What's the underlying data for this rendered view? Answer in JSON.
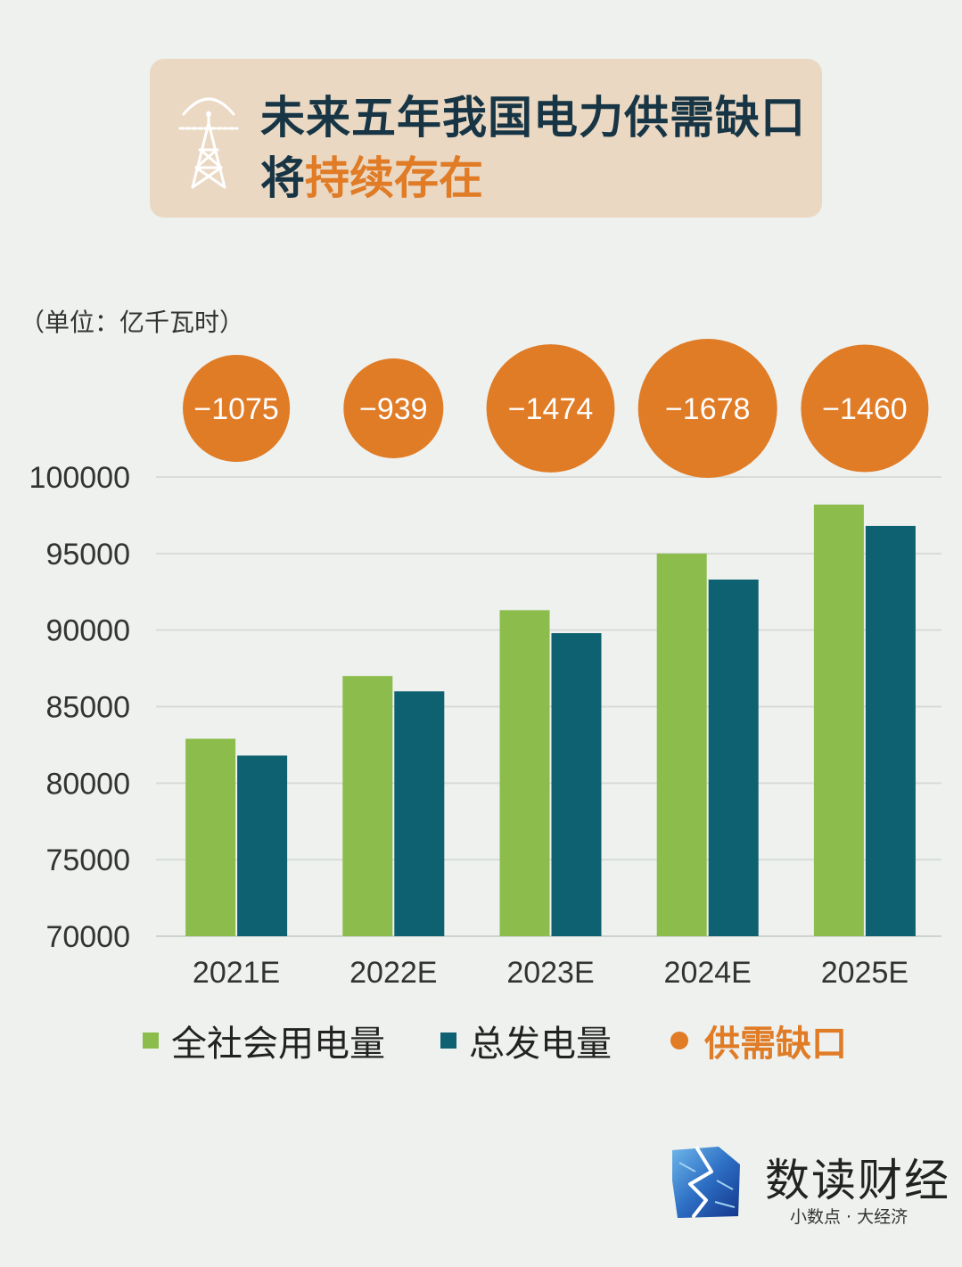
{
  "header": {
    "title_line1": "未来五年我国电力供需缺口",
    "title_line2_prefix": "将",
    "title_line2_accent": "持续存在",
    "icon": "power-tower-icon"
  },
  "unit_note": "（单位：亿千瓦时）",
  "colors": {
    "consumption": "#8cbd4c",
    "generation": "#0d6170",
    "gap": "#e07b26",
    "title_card": "#ead8c3",
    "background": "#eef1ee"
  },
  "chart_data": {
    "type": "bar",
    "categories": [
      "2021E",
      "2022E",
      "2023E",
      "2024E",
      "2025E"
    ],
    "series": [
      {
        "name": "全社会用电量",
        "values": [
          82900,
          87000,
          91300,
          95000,
          98200
        ]
      },
      {
        "name": "总发电量",
        "values": [
          81800,
          86000,
          89800,
          93300,
          96800
        ]
      }
    ],
    "gap": {
      "name": "供需缺口",
      "values": [
        -1075,
        -939,
        -1474,
        -1678,
        -1460
      ],
      "labels": [
        "−1075",
        "−939",
        "−1474",
        "−1678",
        "−1460"
      ]
    },
    "ylim": [
      70000,
      100000
    ],
    "yticks": [
      100000,
      95000,
      90000,
      85000,
      80000,
      75000,
      70000
    ],
    "grid": true,
    "legend_position": "bottom"
  },
  "legend": {
    "consumption_label": "全社会用电量",
    "generation_label": "总发电量",
    "gap_label": "供需缺口"
  },
  "brand": {
    "name": "数读财经",
    "slogan": "小数点 · 大经济",
    "logo_icon": "map-logo-icon"
  }
}
